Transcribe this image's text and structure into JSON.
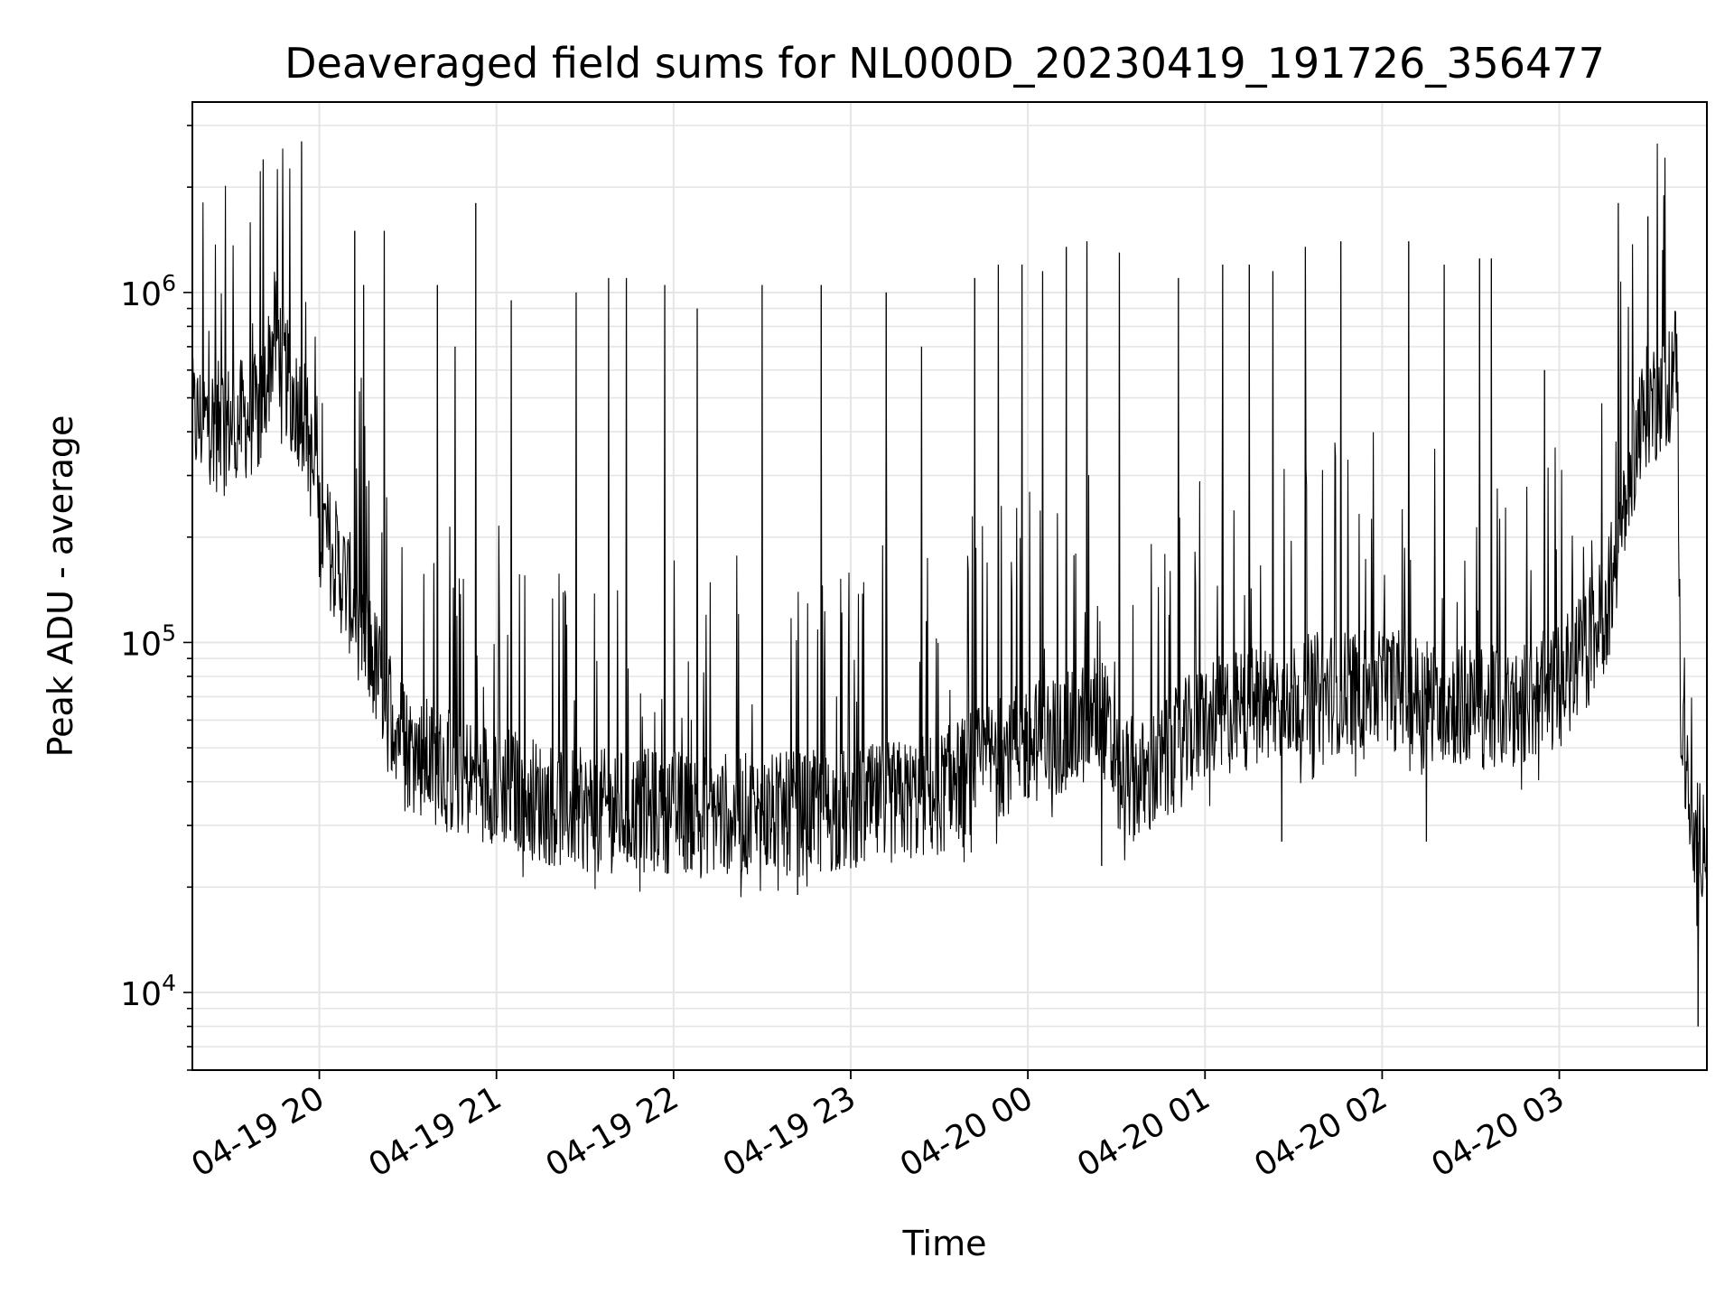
{
  "chart_data": {
    "type": "line",
    "title": "Deaveraged field sums for NL000D_20230419_191726_356477",
    "xlabel": "Time",
    "ylabel": "Peak ADU - average",
    "y_scale": "log",
    "ylim": [
      6000,
      3500000
    ],
    "xlim": [
      "2023-04-19 19:17",
      "2023-04-20 03:50"
    ],
    "grid": true,
    "legend": "none",
    "line_color": "#000000",
    "grid_color": "#e5e5e5",
    "x_ticks": [
      {
        "value": "2023-04-19 20:00",
        "label": "04-19 20"
      },
      {
        "value": "2023-04-19 21:00",
        "label": "04-19 21"
      },
      {
        "value": "2023-04-19 22:00",
        "label": "04-19 22"
      },
      {
        "value": "2023-04-19 23:00",
        "label": "04-19 23"
      },
      {
        "value": "2023-04-20 00:00",
        "label": "04-20 00"
      },
      {
        "value": "2023-04-20 01:00",
        "label": "04-20 01"
      },
      {
        "value": "2023-04-20 02:00",
        "label": "04-20 02"
      },
      {
        "value": "2023-04-20 03:00",
        "label": "04-20 03"
      }
    ],
    "y_ticks": [
      {
        "value": 10000,
        "base": "10",
        "exp": "4"
      },
      {
        "value": 100000,
        "base": "10",
        "exp": "5"
      },
      {
        "value": 1000000,
        "base": "10",
        "exp": "6"
      }
    ],
    "baseline": {
      "x": [
        "2023-04-19 19:17",
        "2023-04-19 19:30",
        "2023-04-19 19:40",
        "2023-04-19 19:45",
        "2023-04-19 19:50",
        "2023-04-19 19:55",
        "2023-04-19 20:00",
        "2023-04-19 20:10",
        "2023-04-19 20:20",
        "2023-04-19 20:30",
        "2023-04-19 20:45",
        "2023-04-19 21:00",
        "2023-04-19 21:15",
        "2023-04-19 21:30",
        "2023-04-19 22:00",
        "2023-04-19 22:30",
        "2023-04-19 23:00",
        "2023-04-19 23:30",
        "2023-04-19 23:45",
        "2023-04-20 00:00",
        "2023-04-20 00:15",
        "2023-04-20 00:25",
        "2023-04-20 00:30",
        "2023-04-20 00:40",
        "2023-04-20 01:00",
        "2023-04-20 01:30",
        "2023-04-20 02:00",
        "2023-04-20 02:30",
        "2023-04-20 02:45",
        "2023-04-20 03:00",
        "2023-04-20 03:10",
        "2023-04-20 03:15",
        "2023-04-20 03:20",
        "2023-04-20 03:25",
        "2023-04-20 03:30",
        "2023-04-20 03:35",
        "2023-04-20 03:40",
        "2023-04-20 03:41",
        "2023-04-20 03:45",
        "2023-04-20 03:50"
      ],
      "values": [
        430000,
        420000,
        450000,
        780000,
        520000,
        450000,
        220000,
        140000,
        80000,
        50000,
        42000,
        40000,
        35000,
        33000,
        33000,
        32000,
        33000,
        37000,
        45000,
        52000,
        55000,
        65000,
        42000,
        40000,
        60000,
        70000,
        75000,
        65000,
        65000,
        75000,
        100000,
        120000,
        180000,
        350000,
        480000,
        500000,
        650000,
        70000,
        25000,
        30000
      ]
    },
    "spikes": [
      {
        "x": "2023-04-19 19:41",
        "value": 2400000
      },
      {
        "x": "2023-04-19 19:54",
        "value": 2700000
      },
      {
        "x": "2023-04-19 20:12",
        "value": 1500000
      },
      {
        "x": "2023-04-19 20:15",
        "value": 1050000
      },
      {
        "x": "2023-04-19 20:22",
        "value": 1500000
      },
      {
        "x": "2023-04-19 20:40",
        "value": 1050000
      },
      {
        "x": "2023-04-19 20:46",
        "value": 700000
      },
      {
        "x": "2023-04-19 20:53",
        "value": 1800000
      },
      {
        "x": "2023-04-19 21:05",
        "value": 950000
      },
      {
        "x": "2023-04-19 21:27",
        "value": 1000000
      },
      {
        "x": "2023-04-19 21:38",
        "value": 1100000
      },
      {
        "x": "2023-04-19 21:44",
        "value": 1100000
      },
      {
        "x": "2023-04-19 21:57",
        "value": 1050000
      },
      {
        "x": "2023-04-19 22:08",
        "value": 900000
      },
      {
        "x": "2023-04-19 22:30",
        "value": 1050000
      },
      {
        "x": "2023-04-19 22:50",
        "value": 1050000
      },
      {
        "x": "2023-04-19 23:12",
        "value": 1000000
      },
      {
        "x": "2023-04-19 23:24",
        "value": 700000
      },
      {
        "x": "2023-04-19 23:42",
        "value": 1100000
      },
      {
        "x": "2023-04-19 23:50",
        "value": 1200000
      },
      {
        "x": "2023-04-19 23:58",
        "value": 1200000
      },
      {
        "x": "2023-04-20 00:05",
        "value": 1150000
      },
      {
        "x": "2023-04-20 00:13",
        "value": 1350000
      },
      {
        "x": "2023-04-20 00:20",
        "value": 1400000
      },
      {
        "x": "2023-04-20 00:31",
        "value": 1300000
      },
      {
        "x": "2023-04-20 00:51",
        "value": 1100000
      },
      {
        "x": "2023-04-20 01:06",
        "value": 1200000
      },
      {
        "x": "2023-04-20 01:15",
        "value": 1200000
      },
      {
        "x": "2023-04-20 01:23",
        "value": 1150000
      },
      {
        "x": "2023-04-20 01:34",
        "value": 1350000
      },
      {
        "x": "2023-04-20 01:46",
        "value": 1400000
      },
      {
        "x": "2023-04-20 02:09",
        "value": 1400000
      },
      {
        "x": "2023-04-20 02:21",
        "value": 1200000
      },
      {
        "x": "2023-04-20 02:33",
        "value": 1250000
      },
      {
        "x": "2023-04-20 02:37",
        "value": 1250000
      },
      {
        "x": "2023-04-20 02:55",
        "value": 600000
      },
      {
        "x": "2023-04-20 03:20",
        "value": 1800000
      },
      {
        "x": "2023-04-20 03:30",
        "value": 1650000
      }
    ],
    "dips": [
      {
        "x": "2023-04-19 22:42",
        "value": 19000
      },
      {
        "x": "2023-04-20 00:25",
        "value": 23000
      },
      {
        "x": "2023-04-20 01:26",
        "value": 27000
      },
      {
        "x": "2023-04-20 02:15",
        "value": 27000
      },
      {
        "x": "2023-04-20 03:47",
        "value": 8000
      }
    ]
  }
}
